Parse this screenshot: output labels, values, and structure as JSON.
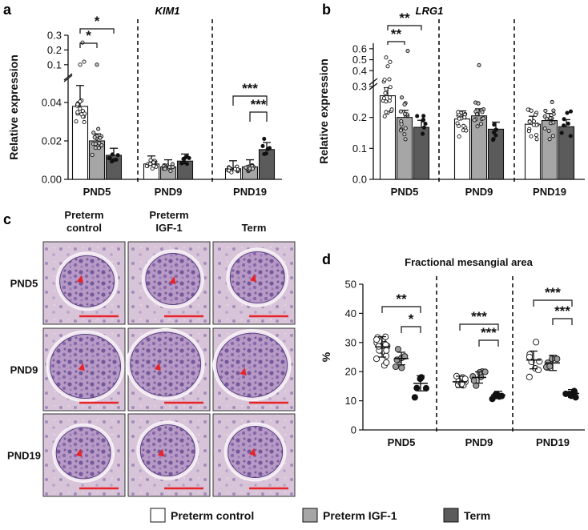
{
  "panel_labels": {
    "a": "a",
    "b": "b",
    "c": "c",
    "d": "d"
  },
  "colors": {
    "preterm_control": "#ffffff",
    "preterm_igf1": "#a6a6a6",
    "term": "#5b5b5b",
    "scale_bar": "#e8232a",
    "arrowhead": "#e8232a"
  },
  "legend": {
    "items": [
      {
        "label": "Preterm control",
        "color": "#ffffff"
      },
      {
        "label": "Preterm IGF-1",
        "color": "#a6a6a6"
      },
      {
        "label": "Term",
        "color": "#5b5b5b"
      }
    ]
  },
  "histology": {
    "columns": [
      "Preterm\ncontrol",
      "Preterm\nIGF-1",
      "Term"
    ],
    "column_lines": [
      [
        "Preterm",
        "control"
      ],
      [
        "Preterm",
        "IGF-1"
      ],
      [
        "Term"
      ]
    ],
    "rows": [
      "PND5",
      "PND9",
      "PND19"
    ]
  },
  "chart_data": [
    {
      "id": "a",
      "type": "bar",
      "title": "KIM1",
      "ylabel": "Relative expression",
      "categories": [
        "PND5",
        "PND9",
        "PND19"
      ],
      "series": [
        {
          "name": "Preterm control",
          "values": [
            0.038,
            0.008,
            0.0055
          ]
        },
        {
          "name": "Preterm IGF-1",
          "values": [
            0.02,
            0.0065,
            0.0065
          ]
        },
        {
          "name": "Term",
          "values": [
            0.0125,
            0.0095,
            0.0155
          ]
        }
      ],
      "y_lower": {
        "ylim": [
          0,
          0.05
        ],
        "ticks": [
          0.0,
          0.02,
          0.04
        ],
        "tick_labels": [
          "0.00",
          "0.02",
          "0.04"
        ]
      },
      "y_upper": {
        "ylim": [
          0.05,
          0.3
        ],
        "ticks": [
          0.1,
          0.2,
          0.3
        ],
        "tick_labels": [
          "0.1",
          "0.2",
          "0.3"
        ]
      },
      "significance": [
        {
          "group": "PND5",
          "from": "Preterm control",
          "to": "Preterm IGF-1",
          "label": "*"
        },
        {
          "group": "PND5",
          "from": "Preterm control",
          "to": "Term",
          "label": "*"
        },
        {
          "group": "PND19",
          "from": "Preterm control",
          "to": "Term",
          "label": "***"
        },
        {
          "group": "PND19",
          "from": "Preterm IGF-1",
          "to": "Term",
          "label": "***"
        }
      ]
    },
    {
      "id": "b",
      "type": "bar",
      "title": "LRG1",
      "ylabel": "Relative expression",
      "categories": [
        "PND5",
        "PND9",
        "PND19"
      ],
      "series": [
        {
          "name": "Preterm control",
          "values": [
            0.27,
            0.195,
            0.178
          ]
        },
        {
          "name": "Preterm IGF-1",
          "values": [
            0.2,
            0.205,
            0.19
          ]
        },
        {
          "name": "Term",
          "values": [
            0.168,
            0.162,
            0.17
          ]
        }
      ],
      "y_lower": {
        "ylim": [
          0,
          0.3
        ],
        "ticks": [
          0.0,
          0.1,
          0.2,
          0.3
        ],
        "tick_labels": [
          "0.0",
          "0.1",
          "0.2",
          "0.3"
        ]
      },
      "y_upper": {
        "ylim": [
          0.3,
          0.65
        ],
        "ticks": [
          0.4,
          0.5,
          0.6
        ],
        "tick_labels": [
          "0.4",
          "0.5",
          "0.6"
        ]
      },
      "significance": [
        {
          "group": "PND5",
          "from": "Preterm control",
          "to": "Preterm IGF-1",
          "label": "**"
        },
        {
          "group": "PND5",
          "from": "Preterm control",
          "to": "Term",
          "label": "**"
        }
      ]
    },
    {
      "id": "d",
      "type": "scatter",
      "title": "Fractional mesangial area",
      "ylabel": "%",
      "categories": [
        "PND5",
        "PND9",
        "PND19"
      ],
      "ylim": [
        0,
        50
      ],
      "ticks": [
        0,
        10,
        20,
        30,
        40,
        50
      ],
      "tick_labels": [
        "0",
        "10",
        "20",
        "30",
        "40",
        "50"
      ],
      "series": [
        {
          "name": "Preterm control",
          "means": [
            28.5,
            16.5,
            24.0
          ]
        },
        {
          "name": "Preterm IGF-1",
          "means": [
            24.5,
            18.0,
            23.0
          ]
        },
        {
          "name": "Term",
          "means": [
            16.0,
            12.0,
            12.5
          ]
        }
      ],
      "significance": [
        {
          "group": "PND5",
          "from": "Preterm control",
          "to": "Term",
          "label": "**"
        },
        {
          "group": "PND5",
          "from": "Preterm IGF-1",
          "to": "Term",
          "label": "*"
        },
        {
          "group": "PND9",
          "from": "Preterm control",
          "to": "Term",
          "label": "***"
        },
        {
          "group": "PND9",
          "from": "Preterm IGF-1",
          "to": "Term",
          "label": "***"
        },
        {
          "group": "PND19",
          "from": "Preterm control",
          "to": "Term",
          "label": "***"
        },
        {
          "group": "PND19",
          "from": "Preterm IGF-1",
          "to": "Term",
          "label": "***"
        }
      ]
    }
  ]
}
